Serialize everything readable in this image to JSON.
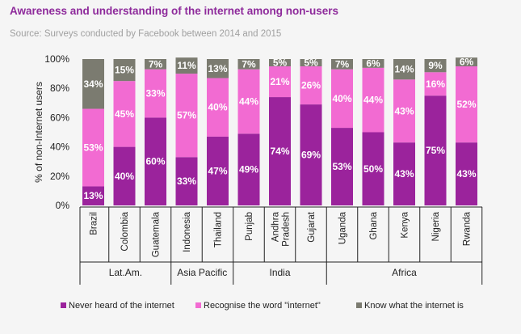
{
  "title": "Awareness and understanding of the internet among non-users",
  "subtitle": "Source: Surveys conducted by Facebook between 2014 and 2015",
  "colors": {
    "never": "#9b239c",
    "recognise": "#f26bd2",
    "know": "#7b7b70"
  },
  "chart_data": {
    "type": "bar",
    "stacked": true,
    "title": "Awareness and understanding of the internet among non-users",
    "ylabel": "% of non-Internet users",
    "xlabel": "",
    "ylim": [
      0,
      100
    ],
    "yticks": [
      "0%",
      "20%",
      "40%",
      "60%",
      "80%",
      "100%"
    ],
    "categories": [
      "Brazil",
      "Colombia",
      "Guatemala",
      "Indonesia",
      "Thailand",
      "Punjab",
      "Andhra Pradesh",
      "Gujarat",
      "Uganda",
      "Ghana",
      "Kenya",
      "Nigeria",
      "Rwanda"
    ],
    "category_lines": [
      [
        "Brazil"
      ],
      [
        "Colombia"
      ],
      [
        "Guatemala"
      ],
      [
        "Indonesia"
      ],
      [
        "Thailand"
      ],
      [
        "Punjab"
      ],
      [
        "Andhra",
        "Pradesh"
      ],
      [
        "Gujarat"
      ],
      [
        "Uganda"
      ],
      [
        "Ghana"
      ],
      [
        "Kenya"
      ],
      [
        "Nigeria"
      ],
      [
        "Rwanda"
      ]
    ],
    "groups": [
      {
        "name": "Lat.Am.",
        "start": 0,
        "end": 2
      },
      {
        "name": "Asia Pacific",
        "start": 3,
        "end": 4
      },
      {
        "name": "India",
        "start": 5,
        "end": 7
      },
      {
        "name": "Africa",
        "start": 8,
        "end": 12
      }
    ],
    "series": [
      {
        "name": "Never heard of the internet",
        "key": "never",
        "values": [
          13,
          40,
          60,
          33,
          47,
          49,
          74,
          69,
          53,
          50,
          43,
          75,
          43
        ]
      },
      {
        "name": "Recognise the word \"internet\"",
        "key": "recognise",
        "values": [
          53,
          45,
          33,
          57,
          40,
          44,
          21,
          26,
          40,
          44,
          43,
          16,
          52
        ]
      },
      {
        "name": "Know what the internet is",
        "key": "know",
        "values": [
          34,
          15,
          7,
          11,
          13,
          7,
          5,
          5,
          7,
          6,
          14,
          9,
          6
        ]
      }
    ]
  }
}
